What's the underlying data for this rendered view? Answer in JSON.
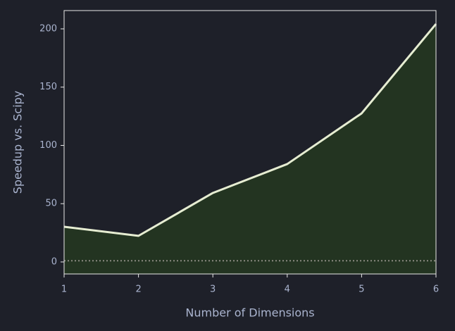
{
  "chart_data": {
    "type": "area",
    "xlabel": "Number of Dimensions",
    "ylabel": "Speedup vs. Scipy",
    "x": [
      1,
      2,
      3,
      4,
      5,
      6
    ],
    "series": [
      {
        "color": "#e6edd2",
        "fill": "#233421",
        "values": [
          30.2,
          22.4,
          59.2,
          84,
          127.5,
          204.2
        ]
      }
    ],
    "xlim": [
      1,
      6
    ],
    "xticks": [
      1,
      2,
      3,
      4,
      5,
      6
    ],
    "ylim": [
      -10.3,
      215.7
    ],
    "yticks": [
      0,
      50,
      100,
      150,
      200
    ],
    "reference_line": {
      "value": 1,
      "color": "#8a8a80"
    }
  }
}
